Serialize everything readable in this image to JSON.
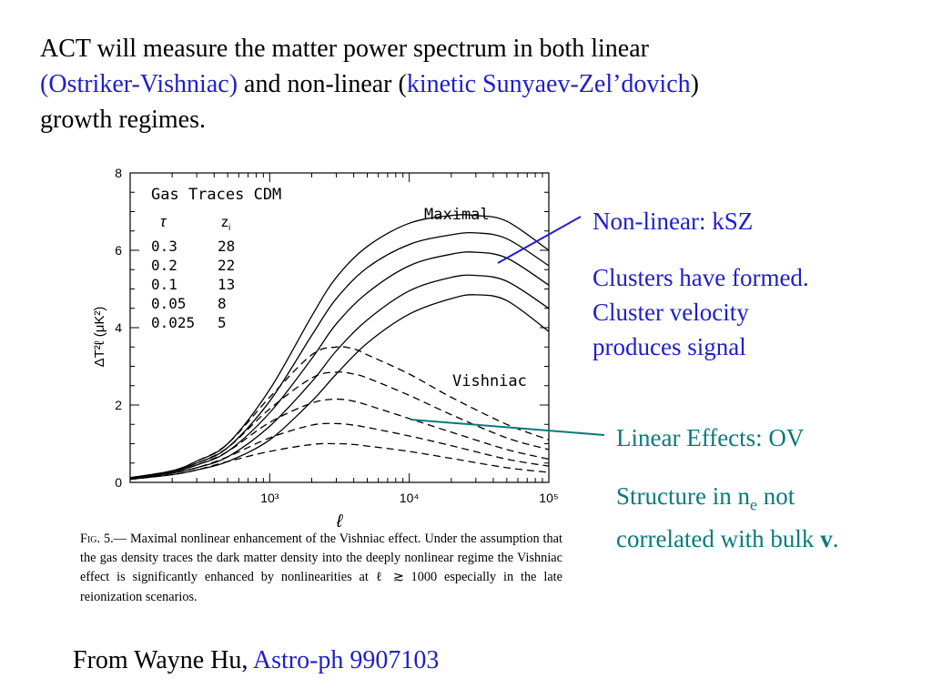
{
  "header": {
    "line1": "ACT will measure the matter power spectrum in both linear",
    "ov_link": "(Ostriker-Vishniac)",
    "mid": " and non-linear (",
    "ksz_link": "kinetic Sunyaev-Zel’dovich",
    "end": ")",
    "line3": "growth regimes."
  },
  "notes": {
    "nonlinear_title": "Non-linear: kSZ",
    "nonlinear_body1": "Clusters have formed.",
    "nonlinear_body2": "Cluster velocity",
    "nonlinear_body3": "produces signal",
    "linear_title": "Linear Effects: OV",
    "linear_body1_pre": "Structure in n",
    "linear_body1_sub": "e",
    "linear_body1_post": " not",
    "linear_body2_pre": "correlated with bulk ",
    "linear_body2_bold": "v",
    "linear_body2_end": "."
  },
  "caption": {
    "fig": "Fig. 5.",
    "text": "— Maximal nonlinear enhancement of the Vishniac effect. Under the assumption that the gas density traces the dark matter density into the deeply nonlinear regime the Vishniac effect is significantly enhanced by nonlinearities at ℓ ≳ 1000 especially in the late reionization scenarios."
  },
  "credit": {
    "prefix": "From Wayne Hu, ",
    "link": "Astro-ph 9907103"
  },
  "colors": {
    "blue": "#1e1ecc",
    "teal": "#0a7a7a"
  },
  "chart_data": {
    "type": "line",
    "title": "Gas Traces CDM",
    "xlabel": "ℓ",
    "ylabel": "ΔT²ℓ (μK²)",
    "xscale": "log",
    "xlim": [
      100,
      100000
    ],
    "ylim": [
      0,
      8
    ],
    "xticks": [
      "10³",
      "10⁴",
      "10⁵"
    ],
    "yticks": [
      "0",
      "2",
      "4",
      "6",
      "8"
    ],
    "legend": {
      "header_tau": "τ",
      "header_zi": "z",
      "header_zi_sub": "i",
      "rows": [
        {
          "tau": "0.3",
          "zi": "28"
        },
        {
          "tau": "0.2",
          "zi": "22"
        },
        {
          "tau": "0.1",
          "zi": "13"
        },
        {
          "tau": "0.05",
          "zi": "8"
        },
        {
          "tau": "0.025",
          "zi": "5"
        }
      ]
    },
    "annotations": {
      "maximal": "Maximal",
      "vishniac": "Vishniac"
    },
    "series": [
      {
        "group": "maximal",
        "tau": "0.3",
        "style": "solid",
        "x": [
          100,
          200,
          300,
          500,
          1000,
          2000,
          3000,
          5000,
          10000,
          20000,
          30000,
          50000,
          100000
        ],
        "y": [
          0.12,
          0.3,
          0.55,
          1.0,
          2.4,
          4.3,
          5.3,
          6.1,
          6.7,
          6.9,
          6.9,
          6.75,
          6.0
        ]
      },
      {
        "group": "maximal",
        "tau": "0.2",
        "style": "solid",
        "x": [
          100,
          200,
          300,
          500,
          1000,
          2000,
          3000,
          5000,
          10000,
          20000,
          30000,
          50000,
          100000
        ],
        "y": [
          0.12,
          0.29,
          0.5,
          0.9,
          2.1,
          3.8,
          4.75,
          5.55,
          6.15,
          6.4,
          6.45,
          6.3,
          5.6
        ]
      },
      {
        "group": "maximal",
        "tau": "0.1",
        "style": "solid",
        "x": [
          100,
          200,
          300,
          500,
          1000,
          2000,
          3000,
          5000,
          10000,
          20000,
          30000,
          50000,
          100000
        ],
        "y": [
          0.11,
          0.27,
          0.45,
          0.8,
          1.8,
          3.2,
          4.1,
          4.9,
          5.6,
          5.9,
          5.95,
          5.8,
          5.1
        ]
      },
      {
        "group": "maximal",
        "tau": "0.05",
        "style": "solid",
        "x": [
          100,
          200,
          300,
          500,
          1000,
          2000,
          3000,
          5000,
          10000,
          20000,
          30000,
          50000,
          100000
        ],
        "y": [
          0.1,
          0.24,
          0.38,
          0.66,
          1.45,
          2.6,
          3.4,
          4.2,
          4.95,
          5.3,
          5.35,
          5.2,
          4.5
        ]
      },
      {
        "group": "maximal",
        "tau": "0.025",
        "style": "solid",
        "x": [
          100,
          200,
          300,
          500,
          1000,
          2000,
          3000,
          5000,
          10000,
          20000,
          30000,
          50000,
          100000
        ],
        "y": [
          0.08,
          0.2,
          0.32,
          0.54,
          1.1,
          2.1,
          2.8,
          3.6,
          4.35,
          4.75,
          4.85,
          4.7,
          3.9
        ]
      },
      {
        "group": "vishniac",
        "tau": "0.3",
        "style": "dashed",
        "x": [
          100,
          200,
          300,
          500,
          1000,
          2000,
          3000,
          4000,
          5000,
          10000,
          20000,
          50000,
          100000
        ],
        "y": [
          0.12,
          0.3,
          0.55,
          1.0,
          2.2,
          3.3,
          3.5,
          3.45,
          3.3,
          2.8,
          2.2,
          1.5,
          1.1
        ]
      },
      {
        "group": "vishniac",
        "tau": "0.2",
        "style": "dashed",
        "x": [
          100,
          200,
          300,
          500,
          1000,
          2000,
          3000,
          4000,
          5000,
          10000,
          20000,
          50000,
          100000
        ],
        "y": [
          0.12,
          0.29,
          0.5,
          0.9,
          1.9,
          2.7,
          2.85,
          2.8,
          2.7,
          2.25,
          1.75,
          1.15,
          0.85
        ]
      },
      {
        "group": "vishniac",
        "tau": "0.1",
        "style": "dashed",
        "x": [
          100,
          200,
          300,
          500,
          1000,
          2000,
          3000,
          4000,
          5000,
          10000,
          20000,
          50000,
          100000
        ],
        "y": [
          0.11,
          0.27,
          0.45,
          0.8,
          1.55,
          2.05,
          2.15,
          2.1,
          2.0,
          1.65,
          1.3,
          0.85,
          0.6
        ]
      },
      {
        "group": "vishniac",
        "tau": "0.05",
        "style": "dashed",
        "x": [
          100,
          200,
          300,
          500,
          1000,
          2000,
          3000,
          4000,
          5000,
          10000,
          20000,
          50000,
          100000
        ],
        "y": [
          0.1,
          0.24,
          0.38,
          0.66,
          1.15,
          1.48,
          1.52,
          1.48,
          1.42,
          1.2,
          0.95,
          0.6,
          0.42
        ]
      },
      {
        "group": "vishniac",
        "tau": "0.025",
        "style": "dashed",
        "x": [
          100,
          200,
          300,
          500,
          1000,
          2000,
          3000,
          4000,
          5000,
          10000,
          20000,
          50000,
          100000
        ],
        "y": [
          0.08,
          0.2,
          0.32,
          0.54,
          0.8,
          0.98,
          1.0,
          0.98,
          0.94,
          0.8,
          0.62,
          0.38,
          0.26
        ]
      }
    ]
  }
}
